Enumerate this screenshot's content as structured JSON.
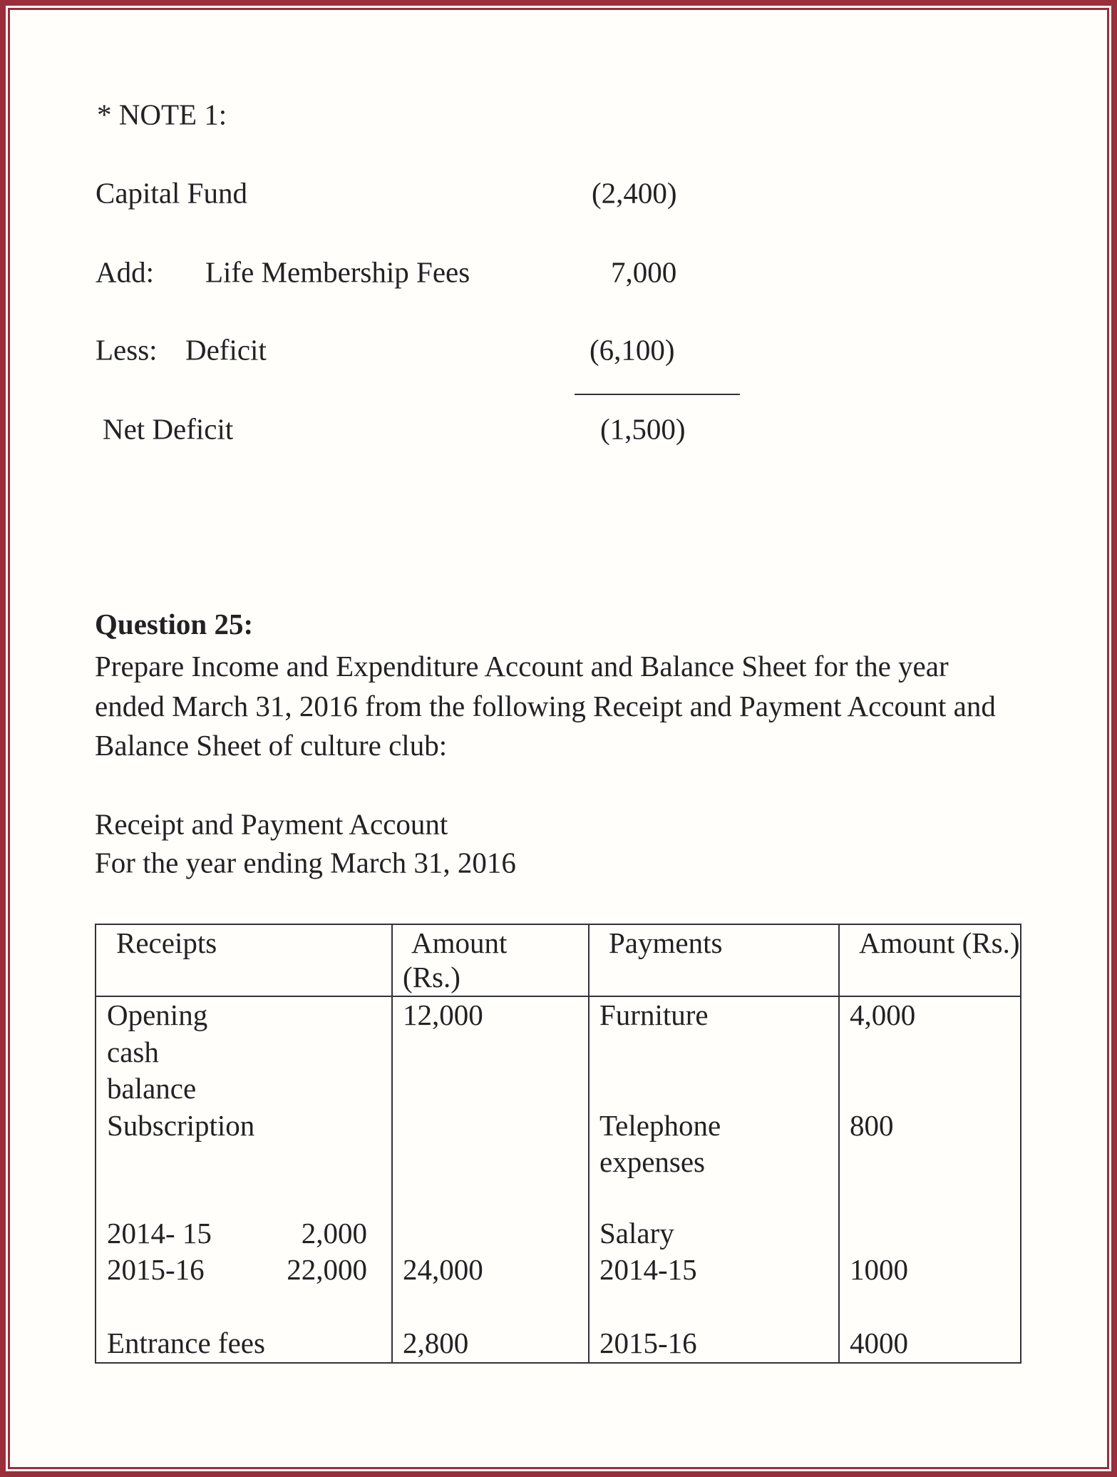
{
  "note": {
    "heading": "* NOTE 1:",
    "rows": [
      {
        "label": "Capital Fund",
        "sublabel": "",
        "amount": "(2,400)"
      },
      {
        "label": "Add:",
        "sublabel": "Life Membership Fees",
        "amount": "7,000"
      },
      {
        "label": "Less:",
        "sublabel": "Deficit",
        "amount": "(6,100)"
      }
    ],
    "total": {
      "label": "Net Deficit",
      "amount": "(1,500)"
    }
  },
  "question": {
    "title": "Question 25:",
    "text": "Prepare Income and Expenditure Account and Balance Sheet for the year ended March 31, 2016 from the following Receipt and Payment Account and Balance Sheet of culture club:",
    "account_title": "Receipt and Payment Account",
    "account_period": "For the year ending March 31, 2016"
  },
  "table": {
    "headers": {
      "receipts": "Receipts",
      "amount1_line1": "Amount",
      "amount1_line2": "(Rs.)",
      "payments": "Payments",
      "amount2": "Amount (Rs.)"
    },
    "receipts": {
      "opening": [
        "Opening",
        "cash",
        "balance"
      ],
      "opening_amount": "12,000",
      "subscription": "Subscription",
      "sub_rows": [
        {
          "year": "2014- 15",
          "amount": "2,000"
        },
        {
          "year": "2015-16",
          "amount": "22,000"
        }
      ],
      "subscription_total": "24,000",
      "entrance": "Entrance fees",
      "entrance_amount": "2,800"
    },
    "payments": {
      "furniture": "Furniture",
      "furniture_amount": "4,000",
      "telephone": [
        "Telephone",
        "expenses"
      ],
      "telephone_amount": "800",
      "salary": "Salary",
      "salary_rows": [
        {
          "year": "2014-15",
          "amount": "1000"
        },
        {
          "year": "2015-16",
          "amount": "4000"
        }
      ]
    }
  }
}
